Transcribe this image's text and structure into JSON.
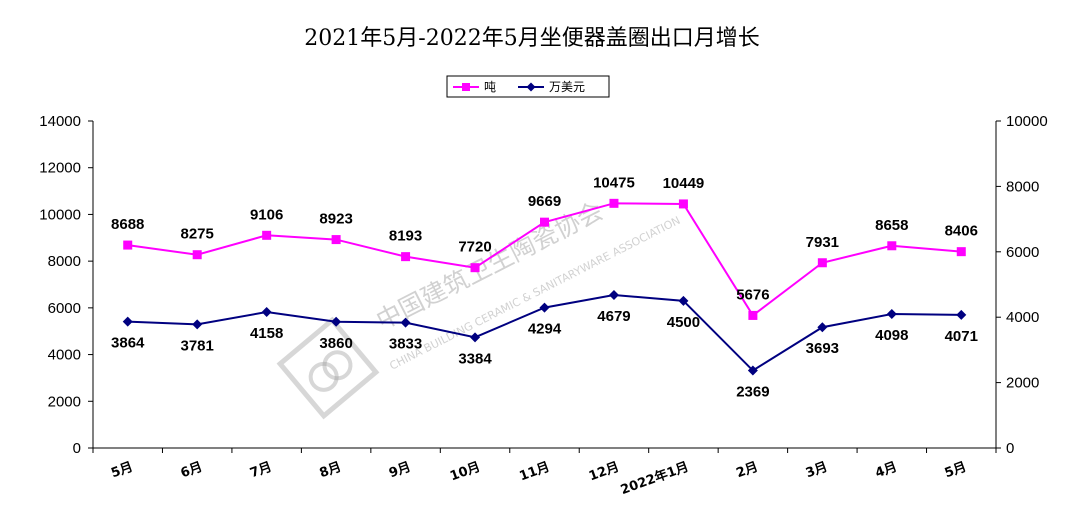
{
  "chart_data": {
    "type": "line",
    "title": "2021年5月-2022年5月坐便器盖圈出口月增长",
    "categories": [
      "5月",
      "6月",
      "7月",
      "8月",
      "9月",
      "10月",
      "11月",
      "12月",
      "2022年1月",
      "2月",
      "3月",
      "4月",
      "5月"
    ],
    "series": [
      {
        "name": "吨",
        "axis": "left",
        "color": "#ff00ff",
        "marker": "square",
        "values": [
          8688,
          8275,
          9106,
          8923,
          8193,
          7720,
          9669,
          10475,
          10449,
          5676,
          7931,
          8658,
          8406
        ]
      },
      {
        "name": "万美元",
        "axis": "right",
        "color": "#000080",
        "marker": "diamond",
        "values": [
          3864,
          3781,
          4158,
          3860,
          3833,
          3384,
          4294,
          4679,
          4500,
          2369,
          3693,
          4098,
          4071
        ]
      }
    ],
    "y_left": {
      "range": [
        0,
        14000
      ],
      "ticks": [
        0,
        2000,
        4000,
        6000,
        8000,
        10000,
        12000,
        14000
      ]
    },
    "y_right": {
      "range": [
        0,
        10000
      ],
      "ticks": [
        0,
        2000,
        4000,
        6000,
        8000,
        10000
      ]
    },
    "grid": false,
    "legend": "top-center"
  },
  "watermark": {
    "cn": "中国建筑卫生陶瓷协会",
    "en": "CHINA BUILDING CERAMIC & SANITARYWARE ASSOCIATION"
  }
}
